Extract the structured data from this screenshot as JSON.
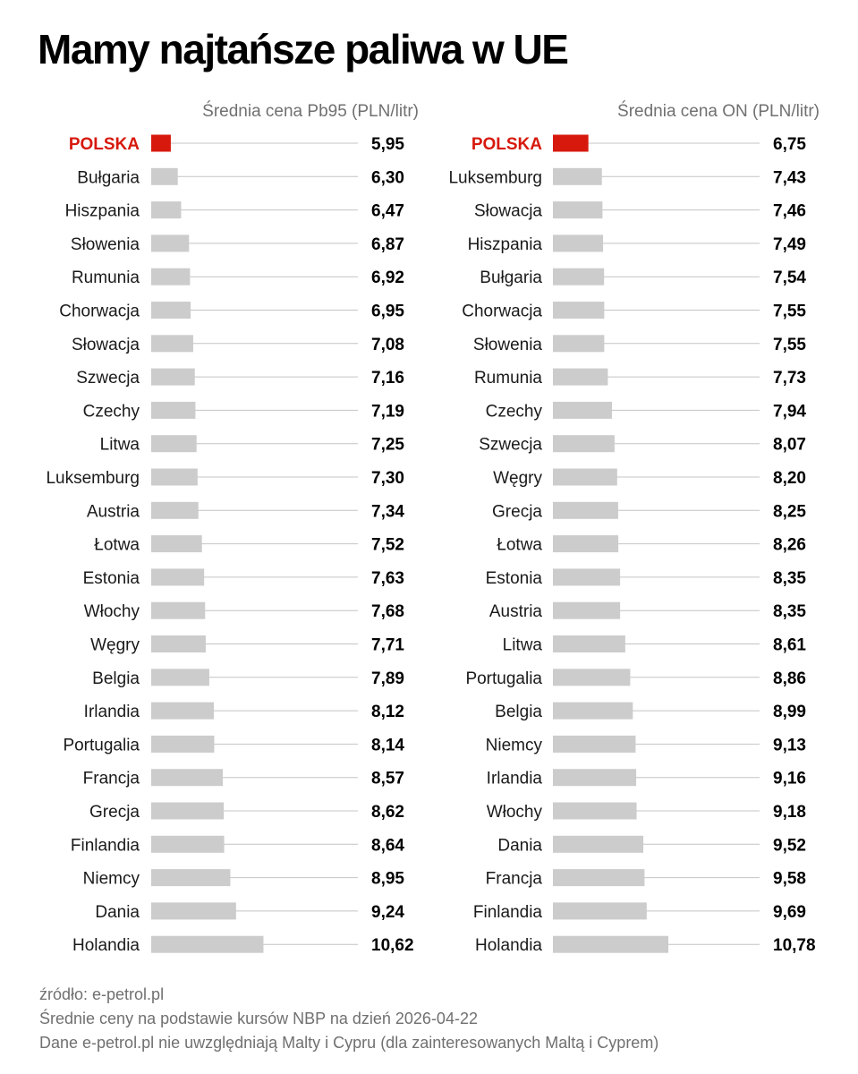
{
  "page": {
    "title": "Mamy najtańsze paliwa w UE",
    "footnotes": {
      "source": "źródło: e-petrol.pl",
      "note1": "Średnie ceny na podstawie kursów NBP na dzień 2026-04-22",
      "note2": "Dane e-petrol.pl nie uwzględniają Malty i Cypru (dla zainteresowanych Maltą i Cyprem)"
    }
  },
  "colors": {
    "highlight": "#d7190d",
    "bar": "#cccccc",
    "guide": "#c4c4c4",
    "label": "#1a1a1a",
    "header": "#707070"
  },
  "chart_data": [
    {
      "type": "bar",
      "orientation": "horizontal",
      "title": "Średnia cena Pb95 (PLN/litr)",
      "highlight": "POLSKA",
      "categories": [
        "POLSKA",
        "Bułgaria",
        "Hiszpania",
        "Słowenia",
        "Rumunia",
        "Chorwacja",
        "Słowacja",
        "Szwecja",
        "Czechy",
        "Litwa",
        "Luksemburg",
        "Austria",
        "Łotwa",
        "Estonia",
        "Włochy",
        "Węgry",
        "Belgia",
        "Irlandia",
        "Portugalia",
        "Francja",
        "Grecja",
        "Finlandia",
        "Niemcy",
        "Dania",
        "Holandia"
      ],
      "values": [
        5.95,
        6.3,
        6.47,
        6.87,
        6.92,
        6.95,
        7.08,
        7.16,
        7.19,
        7.25,
        7.3,
        7.34,
        7.52,
        7.63,
        7.68,
        7.71,
        7.89,
        8.12,
        8.14,
        8.57,
        8.62,
        8.64,
        8.95,
        9.24,
        10.62
      ],
      "labels": [
        "5,95",
        "6,30",
        "6,47",
        "6,87",
        "6,92",
        "6,95",
        "7,08",
        "7,16",
        "7,19",
        "7,25",
        "7,30",
        "7,34",
        "7,52",
        "7,63",
        "7,68",
        "7,71",
        "7,89",
        "8,12",
        "8,14",
        "8,57",
        "8,62",
        "8,64",
        "8,95",
        "9,24",
        "10,62"
      ]
    },
    {
      "type": "bar",
      "orientation": "horizontal",
      "title": "Średnia cena ON (PLN/litr)",
      "highlight": "POLSKA",
      "categories": [
        "POLSKA",
        "Luksemburg",
        "Słowacja",
        "Hiszpania",
        "Bułgaria",
        "Chorwacja",
        "Słowenia",
        "Rumunia",
        "Czechy",
        "Szwecja",
        "Węgry",
        "Grecja",
        "Łotwa",
        "Estonia",
        "Austria",
        "Litwa",
        "Portugalia",
        "Belgia",
        "Niemcy",
        "Irlandia",
        "Włochy",
        "Dania",
        "Francja",
        "Finlandia",
        "Holandia"
      ],
      "values": [
        6.75,
        7.43,
        7.46,
        7.49,
        7.54,
        7.55,
        7.55,
        7.73,
        7.94,
        8.07,
        8.2,
        8.25,
        8.26,
        8.35,
        8.35,
        8.61,
        8.86,
        8.99,
        9.13,
        9.16,
        9.18,
        9.52,
        9.58,
        9.69,
        10.78
      ],
      "labels": [
        "6,75",
        "7,43",
        "7,46",
        "7,49",
        "7,54",
        "7,55",
        "7,55",
        "7,73",
        "7,94",
        "8,07",
        "8,20",
        "8,25",
        "8,26",
        "8,35",
        "8,35",
        "8,61",
        "8,86",
        "8,99",
        "9,13",
        "9,16",
        "9,18",
        "9,52",
        "9,58",
        "9,69",
        "10,78"
      ]
    }
  ]
}
